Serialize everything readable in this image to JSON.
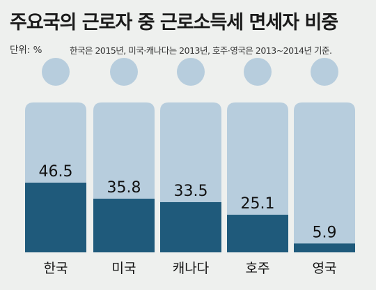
{
  "title": "주요국의 근로자 중 근로소득세 면세자 비중",
  "unit_label": "단위: %",
  "footnote": "한국은 2015년, 미국·캐나다는 2013년, 호주·영국은 2013~2014년 기준.",
  "colors": {
    "body": "#b7cddd",
    "fill": "#1f5a7b",
    "background": "#eef0ee"
  },
  "chart_data": {
    "type": "bar",
    "categories": [
      "한국",
      "미국",
      "캐나다",
      "호주",
      "영국"
    ],
    "values": [
      46.5,
      35.8,
      33.5,
      25.1,
      5.9
    ],
    "value_labels": [
      "46.5",
      "35.8",
      "33.5",
      "25.1",
      "5.9"
    ],
    "title": "주요국의 근로자 중 근로소득세 면세자 비중",
    "xlabel": "",
    "ylabel": "",
    "ylim": [
      0,
      100
    ],
    "grid": false
  }
}
